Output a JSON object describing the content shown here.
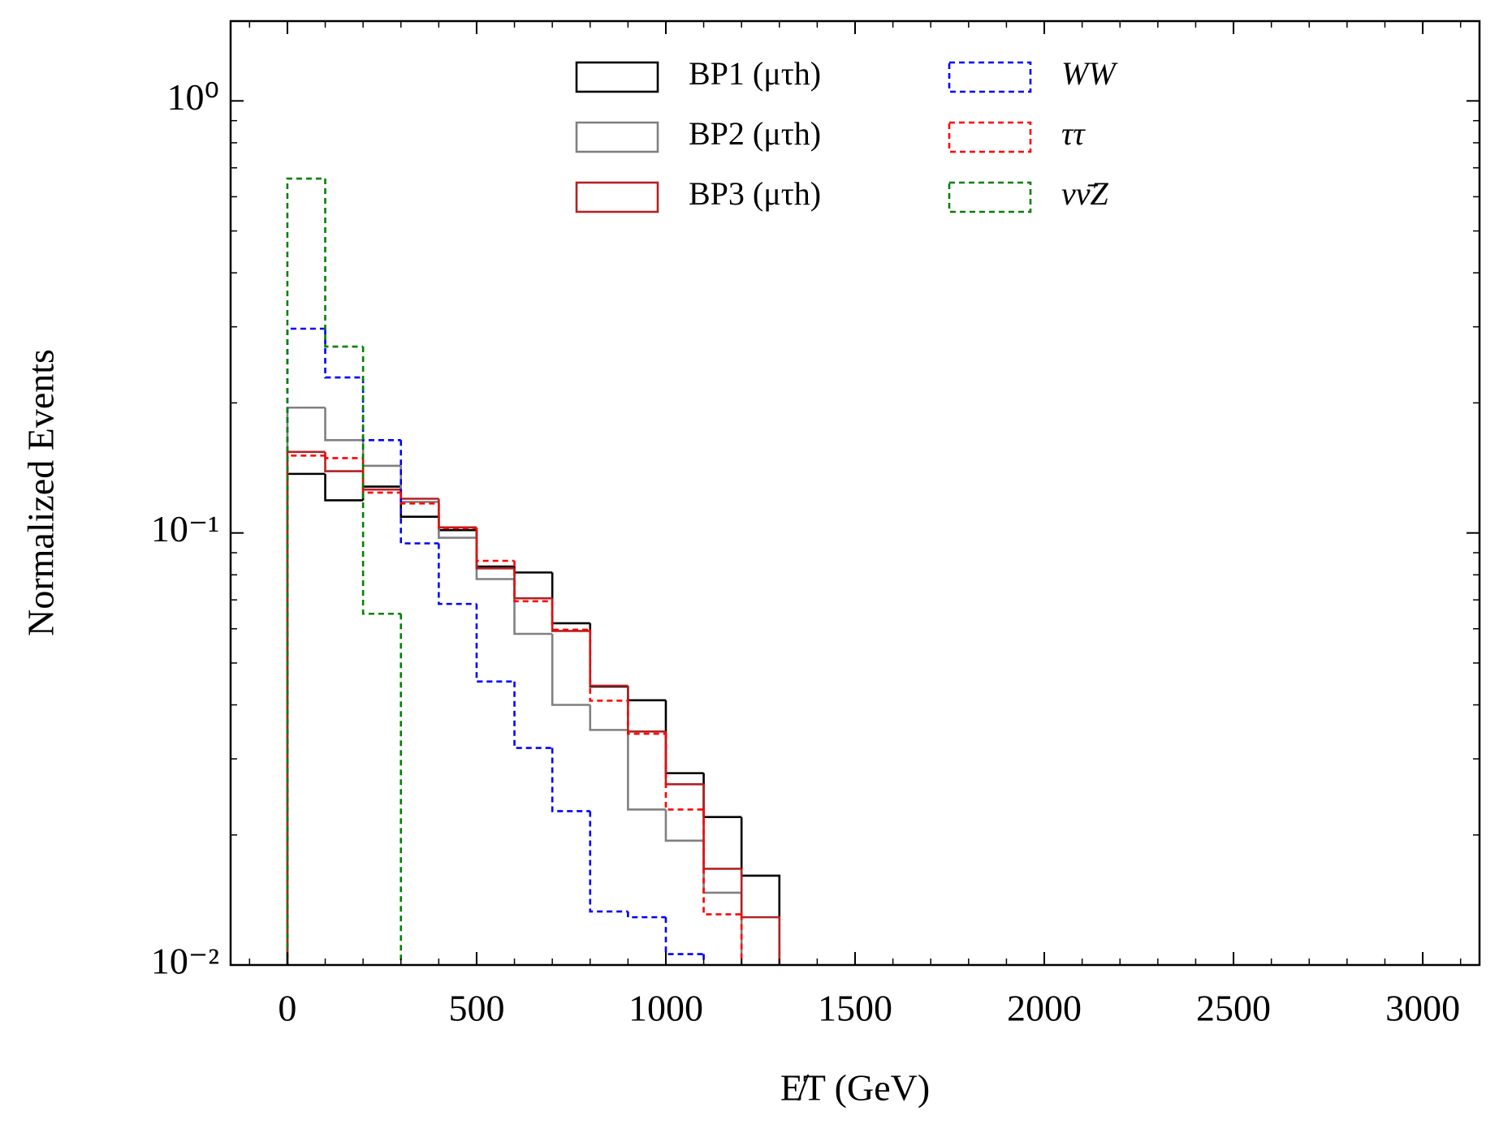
{
  "chart_data": {
    "type": "histogram",
    "xlabel": "E̸T (GeV)",
    "ylabel": "Normalized Events",
    "bins": [
      0,
      100,
      200,
      300,
      400,
      500,
      600,
      700,
      800,
      900,
      1000,
      1100,
      1200,
      1300
    ],
    "series": [
      {
        "name": "BP1 (μτh)",
        "color": "#000000",
        "dashed": false,
        "values": [
          0.137,
          0.119,
          0.128,
          0.109,
          0.1015,
          0.0836,
          0.081,
          0.0618,
          0.0441,
          0.041,
          0.0278,
          0.022,
          0.0161
        ]
      },
      {
        "name": "BP2 (μτh)",
        "color": "#808080",
        "dashed": false,
        "values": [
          0.195,
          0.164,
          0.143,
          0.118,
          0.0975,
          0.0782,
          0.0584,
          0.04,
          0.035,
          0.0229,
          0.0194,
          0.0147,
          0
        ]
      },
      {
        "name": "BP3 (μτh)",
        "color": "#b22222",
        "dashed": false,
        "values": [
          0.154,
          0.139,
          0.126,
          0.12,
          0.103,
          0.0828,
          0.0706,
          0.0593,
          0.0443,
          0.0347,
          0.0262,
          0.0167,
          0.0129
        ]
      },
      {
        "name": "WW",
        "color": "#0000ff",
        "dashed": true,
        "values": [
          0.297,
          0.229,
          0.164,
          0.0946,
          0.0685,
          0.0453,
          0.0318,
          0.0227,
          0.0133,
          0.0129,
          0.0106,
          0,
          0
        ]
      },
      {
        "name": "ττ",
        "color": "#ff0000",
        "dashed": true,
        "values": [
          0.151,
          0.149,
          0.124,
          0.117,
          0.1026,
          0.0862,
          0.0695,
          0.0597,
          0.0409,
          0.0343,
          0.0229,
          0.0131,
          0
        ]
      },
      {
        "name": "νν̄Z",
        "color": "#008000",
        "dashed": true,
        "values": [
          0.661,
          0.27,
          0.065,
          0,
          0,
          0,
          0,
          0,
          0,
          0,
          0,
          0,
          0
        ]
      }
    ],
    "xlim": [
      -150,
      3150
    ],
    "xticks": [
      0,
      500,
      1000,
      1500,
      2000,
      2500,
      3000
    ],
    "ylim": [
      0.01,
      1.53
    ],
    "ylog": true,
    "yticks": [
      {
        "value": 0.01,
        "label": "10⁻²"
      },
      {
        "value": 0.1,
        "label": "10⁻¹"
      },
      {
        "value": 1,
        "label": "10⁰"
      }
    ]
  }
}
